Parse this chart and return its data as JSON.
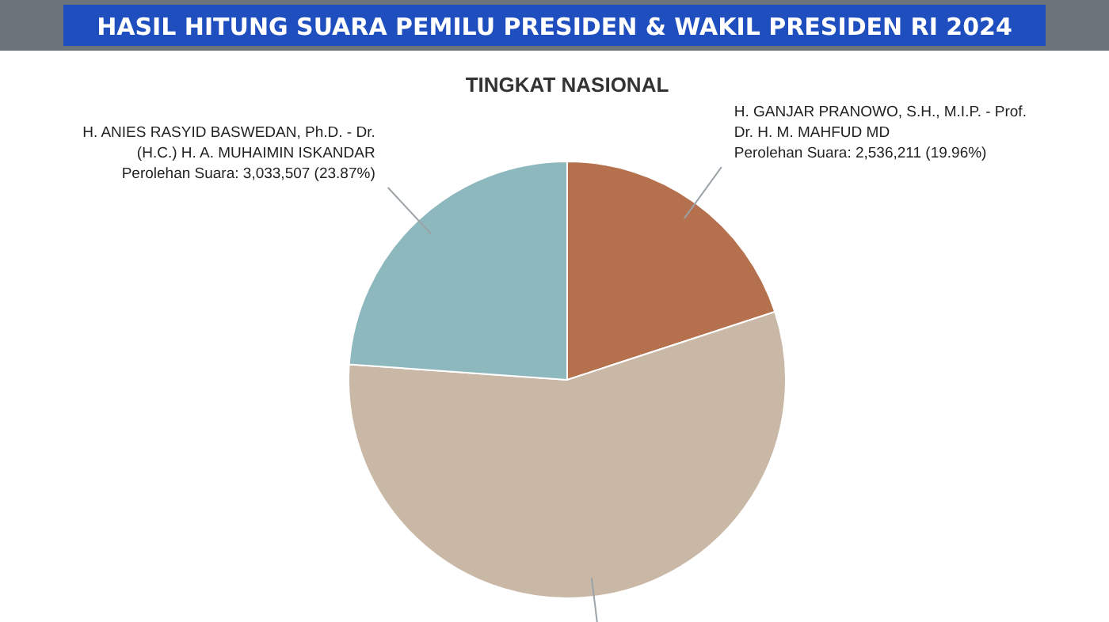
{
  "chart_data": {
    "type": "pie",
    "title": "HASIL HITUNG SUARA PEMILU PRESIDEN & WAKIL PRESIDEN RI 2024",
    "subtitle": "TINGKAT NASIONAL",
    "categories": [
      "H. GANJAR PRANOWO, S.H., M.I.P. - Prof. Dr. H. M. MAHFUD MD",
      null,
      "H. ANIES RASYID BASWEDAN, Ph.D. - Dr. (H.C.) H. A. MUHAIMIN ISKANDAR"
    ],
    "values": [
      19.96,
      56.17,
      23.87
    ],
    "colors": [
      "#b5714d",
      "#c9b8a5",
      "#8db8bd"
    ],
    "value_labels": [
      "Perolehan Suara: 2,536,211 (19.96%)",
      null,
      "Perolehan Suara: 3,033,507 (23.87%)"
    ]
  }
}
